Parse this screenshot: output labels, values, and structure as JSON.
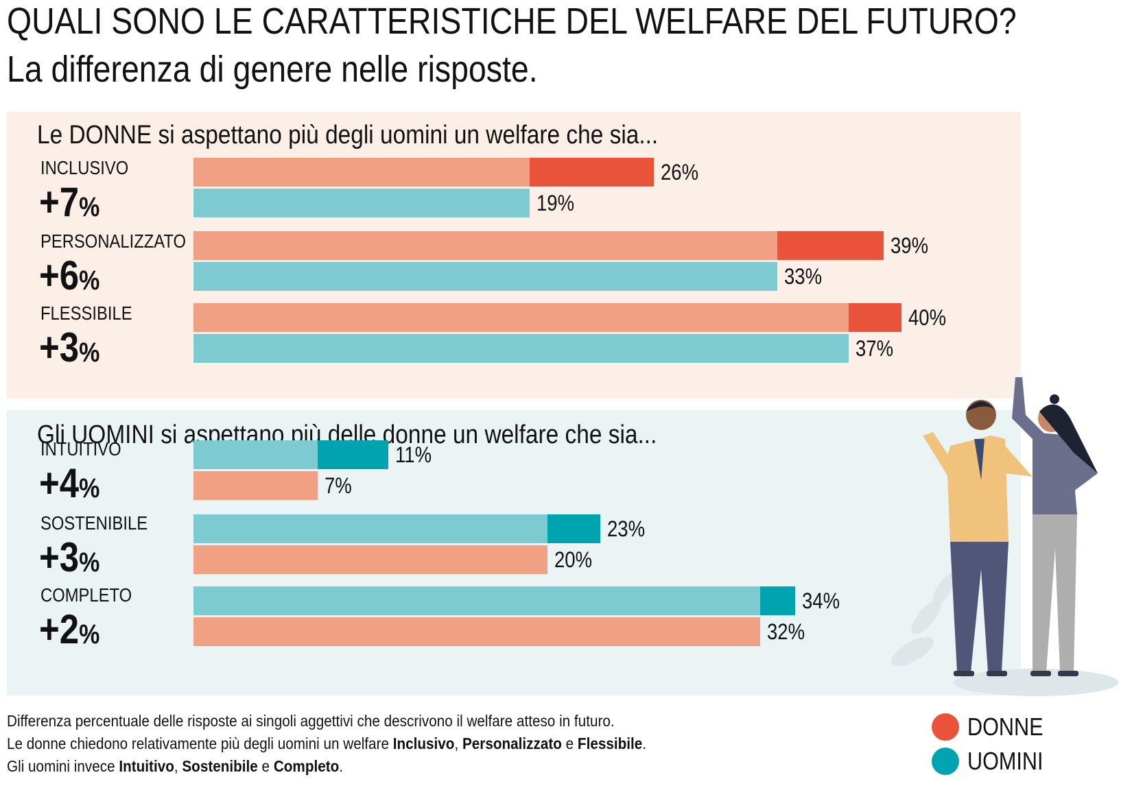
{
  "title": {
    "line1": "QUALI SONO LE CARATTERISTICHE DEL WELFARE DEL FUTURO?",
    "line2": "La differenza di genere nelle risposte."
  },
  "colors": {
    "donne_light": "#f2a083",
    "donne_dark": "#e8533a",
    "uomini_light": "#7ecad1",
    "uomini_dark": "#00a3b0",
    "panel_women_bg": "#fcefe8",
    "panel_men_bg": "#eaf4f5"
  },
  "chart_data": [
    {
      "type": "bar",
      "orientation": "horizontal",
      "title": "Le DONNE si aspettano più degli uomini un welfare che sia...",
      "categories": [
        "INCLUSIVO",
        "PERSONALIZZATO",
        "FLESSIBILE"
      ],
      "differences": [
        "+7%",
        "+6%",
        "+3%"
      ],
      "series": [
        {
          "name": "DONNE",
          "values": [
            26,
            39,
            40
          ],
          "labels": [
            "26%",
            "39%",
            "40%"
          ]
        },
        {
          "name": "UOMINI",
          "values": [
            19,
            33,
            37
          ],
          "labels": [
            "19%",
            "33%",
            "37%"
          ]
        }
      ],
      "xlim": [
        0,
        40
      ]
    },
    {
      "type": "bar",
      "orientation": "horizontal",
      "title": "Gli UOMINI si aspettano più delle donne un welfare che sia...",
      "categories": [
        "INTUITIVO",
        "SOSTENIBILE",
        "COMPLETO"
      ],
      "differences": [
        "+4%",
        "+3%",
        "+2%"
      ],
      "series": [
        {
          "name": "UOMINI",
          "values": [
            11,
            23,
            34
          ],
          "labels": [
            "11%",
            "23%",
            "34%"
          ]
        },
        {
          "name": "DONNE",
          "values": [
            7,
            20,
            32
          ],
          "labels": [
            "7%",
            "20%",
            "32%"
          ]
        }
      ],
      "xlim": [
        0,
        40
      ]
    }
  ],
  "footnote": {
    "line1": "Differenza percentuale delle risposte ai singoli aggettivi che descrivono il welfare atteso in futuro.",
    "line2_pre": "Le donne chiedono relativamente più degli uomini un welfare ",
    "line2_b1": "Inclusivo",
    "line2_sep1": ", ",
    "line2_b2": "Personalizzato",
    "line2_sep2": " e ",
    "line2_b3": "Flessibile",
    "line2_end": ".",
    "line3_pre": "Gli uomini invece ",
    "line3_b1": "Intuitivo",
    "line3_sep1": ", ",
    "line3_b2": "Sostenibile",
    "line3_sep2": " e ",
    "line3_b3": "Completo",
    "line3_end": "."
  },
  "legend": {
    "donne": "DONNE",
    "uomini": "UOMINI"
  }
}
